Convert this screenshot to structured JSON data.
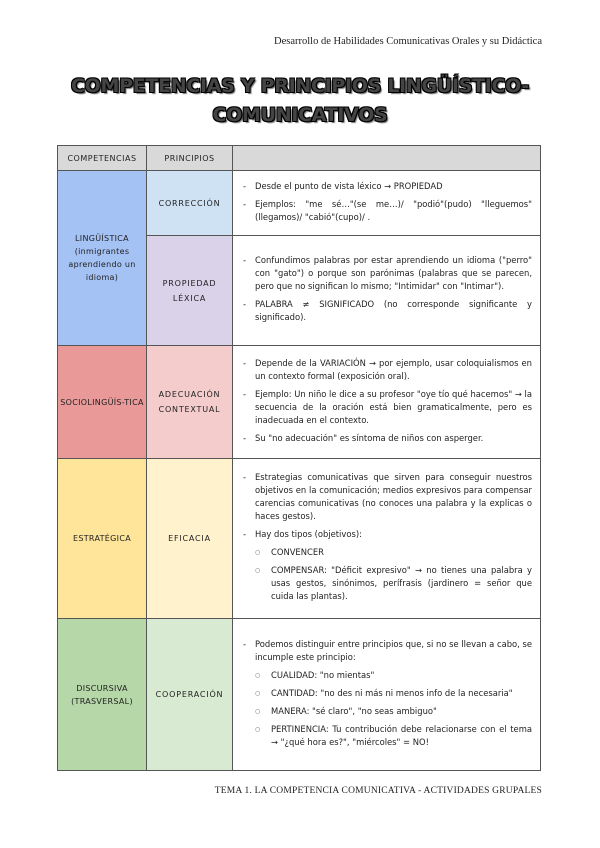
{
  "header": "Desarrollo de Habilidades Comunicativas Orales y su Didáctica",
  "title": [
    "COMPETENCIAS Y PRINCIPIOS LINGÜÍSTICO-",
    "COMUNICATIVOS"
  ],
  "table": {
    "headers": [
      "COMPETENCIAS",
      "PRINCIPIOS",
      ""
    ],
    "colors": {
      "linguistica": "#a4c2f4",
      "correccion": "#cfe2f3",
      "propiedad": "#d9d2e9",
      "socio": "#ea9999",
      "adecuacion": "#f4cccc",
      "estrategica": "#ffe599",
      "eficacia": "#fff2cc",
      "discursiva": "#b6d7a8",
      "cooperacion": "#d9ead3"
    },
    "linguistica": {
      "competencia": "LINGÜÍSTICA",
      "note": "(inmigrantes aprendiendo un idioma)",
      "correccion": {
        "principio": "CORRECCIÓN",
        "items": [
          "Desde el punto de vista léxico → PROPIEDAD",
          "Ejemplos: \"me sé…\"(se me…)/ \"podió\"(pudo) \"lleguemos\"(llegamos)/ \"cabió\"(cupo)/ ."
        ]
      },
      "propiedad": {
        "principio": "PROPIEDAD LÉXICA",
        "items": [
          "Confundimos palabras por estar aprendiendo un idioma (\"perro\" con \"gato\") o porque son parónimas (palabras que se parecen, pero que no significan lo mismo; \"Intimidar\" con \"Intimar\").",
          "PALABRA ≠ SIGNIFICADO (no corresponde significante y significado)."
        ]
      }
    },
    "socio": {
      "competencia": "SOCIOLINGÜÍS-TICA",
      "principio": "ADECUACIÓN CONTEXTUAL",
      "items": [
        "Depende de la VARIACIÓN → por ejemplo, usar coloquialismos en un contexto formal (exposición oral).",
        "Ejemplo: Un niño le dice a su profesor \"oye tío qué hacemos\" → la secuencia de la oración está bien gramaticalmente, pero es inadecuada en el contexto.",
        "Su \"no adecuación\" es síntoma de niños con asperger."
      ]
    },
    "estrategica": {
      "competencia": "ESTRATÉGICA",
      "principio": "EFICACIA",
      "items": [
        "Estrategias comunicativas que sirven para conseguir nuestros objetivos en la comunicación; medios expresivos para compensar carencias comunicativas (no conoces una palabra y la explicas o haces gestos).",
        "Hay dos tipos (objetivos):"
      ],
      "sub": [
        "CONVENCER",
        "COMPENSAR: \"Déficit expresivo\" → no tienes una palabra y usas gestos, sinónimos, perífrasis (jardinero = señor que cuida las plantas)."
      ]
    },
    "discursiva": {
      "competencia": "DISCURSIVA",
      "note": "(TRASVERSAL)",
      "principio": "COOPERACIÓN",
      "items": [
        "Podemos distinguir entre principios que, si no se llevan a cabo, se incumple este principio:"
      ],
      "sub": [
        "CUALIDAD: \"no mientas\"",
        "CANTIDAD: \"no des ni más ni menos info de la necesaria\"",
        "MANERA: \"sé claro\", \"no seas ambiguo\"",
        "PERTINENCIA: Tu contribución debe relacionarse con el tema → \"¿qué hora es?\", \"miércoles\" = NO!"
      ]
    }
  },
  "footer": "TEMA 1. LA COMPETENCIA COMUNICATIVA - ACTIVIDADES GRUPALES"
}
